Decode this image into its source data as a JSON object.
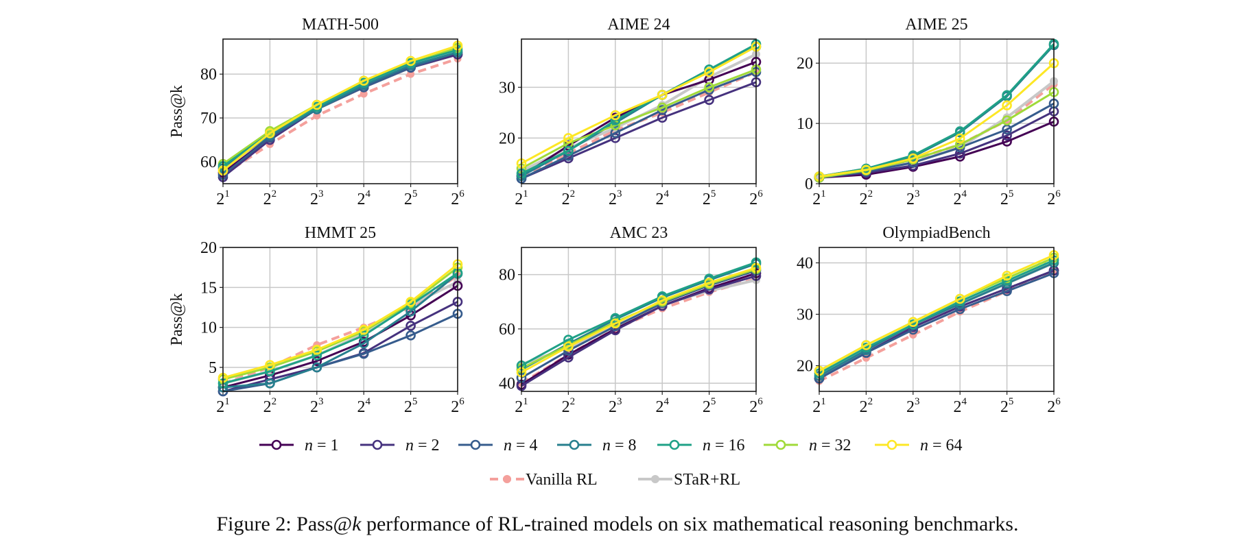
{
  "x_tick_labels": [
    "2^1",
    "2^2",
    "2^3",
    "2^4",
    "2^5",
    "2^6"
  ],
  "legend_entries": [
    {
      "label": "n = 1",
      "color": "#440154"
    },
    {
      "label": "n = 2",
      "color": "#46327e"
    },
    {
      "label": "n = 4",
      "color": "#365c8d"
    },
    {
      "label": "n = 8",
      "color": "#277f8e"
    },
    {
      "label": "n = 16",
      "color": "#1fa187"
    },
    {
      "label": "n = 32",
      "color": "#a0da39"
    },
    {
      "label": "n = 64",
      "color": "#fde725"
    },
    {
      "label": "Vanilla RL",
      "color": "#f4a09c",
      "dashed": true
    },
    {
      "label": "STaR+RL",
      "color": "#c8c8c8"
    }
  ],
  "caption": {
    "prefix": "Figure 2: Pass@",
    "k": "k",
    "suffix": " performance of RL-trained models on six mathematical reasoning benchmarks."
  },
  "chart_data": [
    {
      "type": "line",
      "title": "MATH-500",
      "ylabel": "Pass@k",
      "xlabel": "",
      "x": [
        2,
        4,
        8,
        16,
        32,
        64
      ],
      "x_scale": "log2",
      "ylim": [
        55,
        88
      ],
      "yticks": [
        60,
        70,
        80
      ],
      "series": [
        {
          "name": "n = 1",
          "values": [
            57.5,
            65.5,
            72.0,
            77.0,
            81.5,
            84.5
          ]
        },
        {
          "name": "n = 2",
          "values": [
            56.5,
            65.0,
            72.0,
            77.5,
            81.5,
            84.5
          ]
        },
        {
          "name": "n = 4",
          "values": [
            57.0,
            65.5,
            72.0,
            77.0,
            81.5,
            85.0
          ]
        },
        {
          "name": "n = 8",
          "values": [
            58.5,
            66.0,
            72.0,
            77.5,
            82.0,
            85.0
          ]
        },
        {
          "name": "n = 16",
          "values": [
            59.0,
            66.5,
            72.5,
            78.0,
            82.5,
            85.5
          ]
        },
        {
          "name": "n = 32",
          "values": [
            59.5,
            67.0,
            73.0,
            78.5,
            82.5,
            86.0
          ]
        },
        {
          "name": "n = 64",
          "values": [
            58.0,
            66.5,
            73.0,
            78.5,
            83.0,
            86.5
          ]
        },
        {
          "name": "Vanilla RL",
          "values": [
            57.0,
            64.0,
            70.5,
            75.5,
            80.0,
            83.5
          ]
        },
        {
          "name": "STaR+RL",
          "values": [
            58.0,
            65.5,
            72.0,
            77.0,
            81.5,
            84.5
          ]
        }
      ]
    },
    {
      "type": "line",
      "title": "AIME 24",
      "ylabel": "",
      "xlabel": "",
      "x": [
        2,
        4,
        8,
        16,
        32,
        64
      ],
      "x_scale": "log2",
      "ylim": [
        11,
        39.5
      ],
      "yticks": [
        20,
        30
      ],
      "series": [
        {
          "name": "n = 1",
          "values": [
            12.5,
            18.5,
            24.0,
            28.5,
            31.5,
            35.0
          ]
        },
        {
          "name": "n = 2",
          "values": [
            12.0,
            16.0,
            20.0,
            24.0,
            27.5,
            31.0
          ]
        },
        {
          "name": "n = 4",
          "values": [
            12.0,
            16.5,
            21.0,
            25.5,
            29.5,
            33.0
          ]
        },
        {
          "name": "n = 8",
          "values": [
            12.5,
            17.5,
            23.0,
            28.5,
            33.5,
            38.0
          ]
        },
        {
          "name": "n = 16",
          "values": [
            13.0,
            17.5,
            23.5,
            28.5,
            33.5,
            38.5
          ]
        },
        {
          "name": "n = 32",
          "values": [
            14.0,
            19.0,
            22.5,
            26.0,
            30.0,
            33.5
          ]
        },
        {
          "name": "n = 64",
          "values": [
            15.0,
            20.0,
            24.5,
            28.5,
            33.0,
            38.0
          ]
        },
        {
          "name": "Vanilla RL",
          "values": [
            12.5,
            17.0,
            21.5,
            25.0,
            29.0,
            33.0
          ]
        },
        {
          "name": "STaR+RL",
          "values": [
            13.5,
            18.0,
            22.0,
            26.5,
            32.0,
            36.5
          ]
        }
      ]
    },
    {
      "type": "line",
      "title": "AIME 25",
      "ylabel": "",
      "xlabel": "",
      "x": [
        2,
        4,
        8,
        16,
        32,
        64
      ],
      "x_scale": "log2",
      "ylim": [
        0,
        24
      ],
      "yticks": [
        0,
        10,
        20
      ],
      "series": [
        {
          "name": "n = 1",
          "values": [
            1.0,
            1.5,
            2.8,
            4.5,
            7.0,
            10.3
          ]
        },
        {
          "name": "n = 2",
          "values": [
            1.0,
            1.8,
            3.0,
            5.0,
            8.0,
            12.0
          ]
        },
        {
          "name": "n = 4",
          "values": [
            1.0,
            2.0,
            3.5,
            6.0,
            9.0,
            13.3
          ]
        },
        {
          "name": "n = 8",
          "values": [
            1.2,
            2.5,
            4.5,
            8.5,
            14.5,
            23.0
          ]
        },
        {
          "name": "n = 16",
          "values": [
            1.2,
            2.5,
            4.7,
            8.7,
            14.7,
            23.2
          ]
        },
        {
          "name": "n = 32",
          "values": [
            1.0,
            2.2,
            4.0,
            6.5,
            10.5,
            15.2
          ]
        },
        {
          "name": "n = 64",
          "values": [
            1.2,
            2.3,
            4.2,
            7.5,
            13.0,
            20.0
          ]
        },
        {
          "name": "Vanilla RL",
          "values": [
            1.0,
            2.0,
            4.0,
            6.5,
            10.5,
            16.5
          ]
        },
        {
          "name": "STaR+RL",
          "values": [
            1.0,
            2.0,
            3.5,
            6.0,
            11.0,
            17.0
          ]
        }
      ]
    },
    {
      "type": "line",
      "title": "HMMT 25",
      "ylabel": "Pass@k",
      "xlabel": "",
      "x": [
        2,
        4,
        8,
        16,
        32,
        64
      ],
      "x_scale": "log2",
      "ylim": [
        2,
        20
      ],
      "yticks": [
        5,
        10,
        15,
        20
      ],
      "series": [
        {
          "name": "n = 1",
          "values": [
            2.5,
            4.0,
            5.8,
            8.2,
            11.5,
            15.2
          ]
        },
        {
          "name": "n = 2",
          "values": [
            2.0,
            3.5,
            5.0,
            6.8,
            10.2,
            13.2
          ]
        },
        {
          "name": "n = 4",
          "values": [
            2.0,
            3.0,
            5.0,
            6.7,
            9.0,
            11.7
          ]
        },
        {
          "name": "n = 8",
          "values": [
            2.5,
            3.0,
            5.0,
            8.0,
            12.0,
            16.7
          ]
        },
        {
          "name": "n = 16",
          "values": [
            3.0,
            4.5,
            6.5,
            9.0,
            12.8,
            16.8
          ]
        },
        {
          "name": "n = 32",
          "values": [
            3.5,
            5.0,
            7.0,
            9.5,
            13.0,
            17.5
          ]
        },
        {
          "name": "n = 64",
          "values": [
            3.7,
            5.3,
            7.2,
            9.7,
            13.2,
            17.9
          ]
        },
        {
          "name": "Vanilla RL",
          "values": [
            3.0,
            5.0,
            7.8,
            10.0,
            12.5,
            16.5
          ]
        },
        {
          "name": "STaR+RL",
          "values": [
            3.0,
            4.5,
            6.5,
            9.2,
            12.8,
            15.7
          ]
        }
      ]
    },
    {
      "type": "line",
      "title": "AMC 23",
      "ylabel": "",
      "xlabel": "",
      "x": [
        2,
        4,
        8,
        16,
        32,
        64
      ],
      "x_scale": "log2",
      "ylim": [
        37,
        90
      ],
      "yticks": [
        40,
        60,
        80
      ],
      "series": [
        {
          "name": "n = 1",
          "values": [
            39.5,
            50.5,
            60.0,
            68.5,
            75.0,
            80.5
          ]
        },
        {
          "name": "n = 2",
          "values": [
            39.0,
            49.5,
            59.5,
            68.5,
            74.5,
            79.5
          ]
        },
        {
          "name": "n = 4",
          "values": [
            42.0,
            52.0,
            61.0,
            69.5,
            76.0,
            81.5
          ]
        },
        {
          "name": "n = 8",
          "values": [
            45.0,
            54.5,
            63.5,
            71.5,
            78.0,
            84.0
          ]
        },
        {
          "name": "n = 16",
          "values": [
            46.5,
            56.0,
            64.0,
            72.0,
            78.5,
            84.5
          ]
        },
        {
          "name": "n = 32",
          "values": [
            45.5,
            54.0,
            62.5,
            70.0,
            76.5,
            82.0
          ]
        },
        {
          "name": "n = 64",
          "values": [
            44.0,
            53.5,
            62.0,
            70.5,
            77.0,
            82.5
          ]
        },
        {
          "name": "Vanilla RL",
          "values": [
            40.0,
            50.5,
            60.0,
            67.5,
            73.5,
            78.5
          ]
        },
        {
          "name": "STaR+RL",
          "values": [
            47.0,
            53.0,
            61.0,
            69.0,
            74.0,
            78.0
          ]
        }
      ]
    },
    {
      "type": "line",
      "title": "OlympiadBench",
      "ylabel": "",
      "xlabel": "",
      "x": [
        2,
        4,
        8,
        16,
        32,
        64
      ],
      "x_scale": "log2",
      "ylim": [
        15,
        43
      ],
      "yticks": [
        20,
        30,
        40
      ],
      "series": [
        {
          "name": "n = 1",
          "values": [
            17.5,
            22.5,
            27.5,
            31.5,
            35.0,
            38.5
          ]
        },
        {
          "name": "n = 2",
          "values": [
            17.5,
            22.5,
            27.5,
            31.5,
            35.0,
            38.5
          ]
        },
        {
          "name": "n = 4",
          "values": [
            17.5,
            22.5,
            27.0,
            31.0,
            34.5,
            38.0
          ]
        },
        {
          "name": "n = 8",
          "values": [
            18.0,
            23.0,
            28.0,
            32.0,
            36.0,
            40.0
          ]
        },
        {
          "name": "n = 16",
          "values": [
            18.5,
            23.5,
            28.0,
            32.5,
            36.5,
            40.5
          ]
        },
        {
          "name": "n = 32",
          "values": [
            19.0,
            24.0,
            28.5,
            33.0,
            37.0,
            41.0
          ]
        },
        {
          "name": "n = 64",
          "values": [
            19.0,
            24.0,
            28.5,
            33.0,
            37.5,
            41.5
          ]
        },
        {
          "name": "Vanilla RL",
          "values": [
            17.0,
            21.5,
            26.0,
            30.5,
            34.5,
            38.5
          ]
        },
        {
          "name": "STaR+RL",
          "values": [
            18.5,
            23.0,
            27.5,
            32.0,
            36.0,
            40.0
          ]
        }
      ]
    }
  ]
}
